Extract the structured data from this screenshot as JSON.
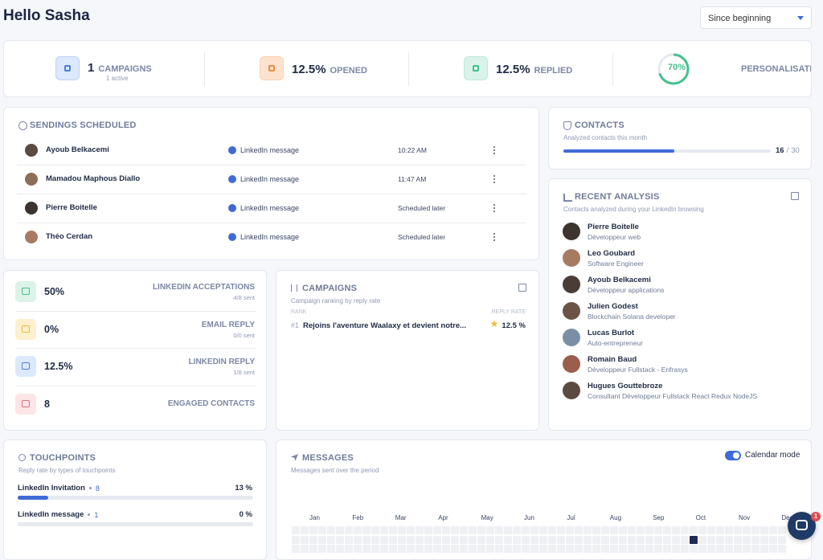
{
  "header": {
    "title": "Hello Sasha",
    "filter": "Since beginning"
  },
  "stats": [
    {
      "value": "1",
      "label": "CAMPAIGNS",
      "sub": "1 active"
    },
    {
      "value": "12.5%",
      "label": "OPENED"
    },
    {
      "value": "12.5%",
      "label": "REPLIED"
    },
    {
      "value": 70,
      "value_label": "70%",
      "label": "PERSONALISATION"
    }
  ],
  "sendings": {
    "title": "SENDINGS SCHEDULED",
    "rows": [
      {
        "name": "Ayoub Belkacemi",
        "channel": "LinkedIn message",
        "time": "10:22 AM"
      },
      {
        "name": "Mamadou Maphous Diallo",
        "channel": "LinkedIn message",
        "time": "11:47 AM"
      },
      {
        "name": "Pierre Boitelle",
        "channel": "LinkedIn message",
        "time": "Scheduled later"
      },
      {
        "name": "Théo Cerdan",
        "channel": "LinkedIn message",
        "time": "Scheduled later"
      }
    ]
  },
  "contacts": {
    "title": "CONTACTS",
    "subtitle": "Analyzed contacts this month",
    "used": 16,
    "separator": "/",
    "total": 30
  },
  "recent_analysis": {
    "title": "RECENT ANALYSIS",
    "subtitle": "Contacts analyzed during your LinkedIn browsing",
    "people": [
      {
        "name": "Pierre Boitelle",
        "role": "Développeur web"
      },
      {
        "name": "Leo Goubard",
        "role": "Software Engineer"
      },
      {
        "name": "Ayoub Belkacemi",
        "role": "Développeur applications"
      },
      {
        "name": "Julien Godest",
        "role": "Blockchain Solana developer"
      },
      {
        "name": "Lucas Burlot",
        "role": "Auto-entrepreneur"
      },
      {
        "name": "Romain Baud",
        "role": "Développeur Fullstack - Enfrasys"
      },
      {
        "name": "Hugues Gouttebroze",
        "role": "Consultant Développeur Fullstack React Redux NodeJS"
      }
    ]
  },
  "performance": [
    {
      "value": "50%",
      "label": "LINKEDIN ACCEPTATIONS",
      "sub": "4/8 sent"
    },
    {
      "value": "0%",
      "label": "EMAIL REPLY",
      "sub": "0/0 sent"
    },
    {
      "value": "12.5%",
      "label": "LINKEDIN REPLY",
      "sub": "1/8 sent"
    },
    {
      "value": "8",
      "label": "ENGAGED CONTACTS"
    }
  ],
  "campaigns": {
    "title": "CAMPAIGNS",
    "subtitle": "Campaign ranking by reply rate",
    "rank_header": "RANK",
    "rate_header": "REPLY RATE",
    "rows": [
      {
        "rank": "#1",
        "name": "Rejoins l'aventure Waalaxy et devient notre...",
        "rate": "12.5 %"
      }
    ]
  },
  "touchpoints": {
    "title": "TOUCHPOINTS",
    "subtitle": "Reply rate by types of touchpoints",
    "rows": [
      {
        "name": "LinkedIn Invitation",
        "count": 8,
        "rate": 13,
        "rate_label": "13 %"
      },
      {
        "name": "LinkedIn message",
        "count": 1,
        "rate": 0,
        "rate_label": "0 %"
      }
    ]
  },
  "messages": {
    "title": "MESSAGES",
    "subtitle": "Messages sent over the period",
    "toggle": "Calendar mode",
    "months": [
      "Jan",
      "Feb",
      "Mar",
      "Apr",
      "May",
      "Jun",
      "Jul",
      "Aug",
      "Sep",
      "Oct",
      "Nov",
      "Dec"
    ]
  },
  "chat": {
    "badge": "1"
  }
}
